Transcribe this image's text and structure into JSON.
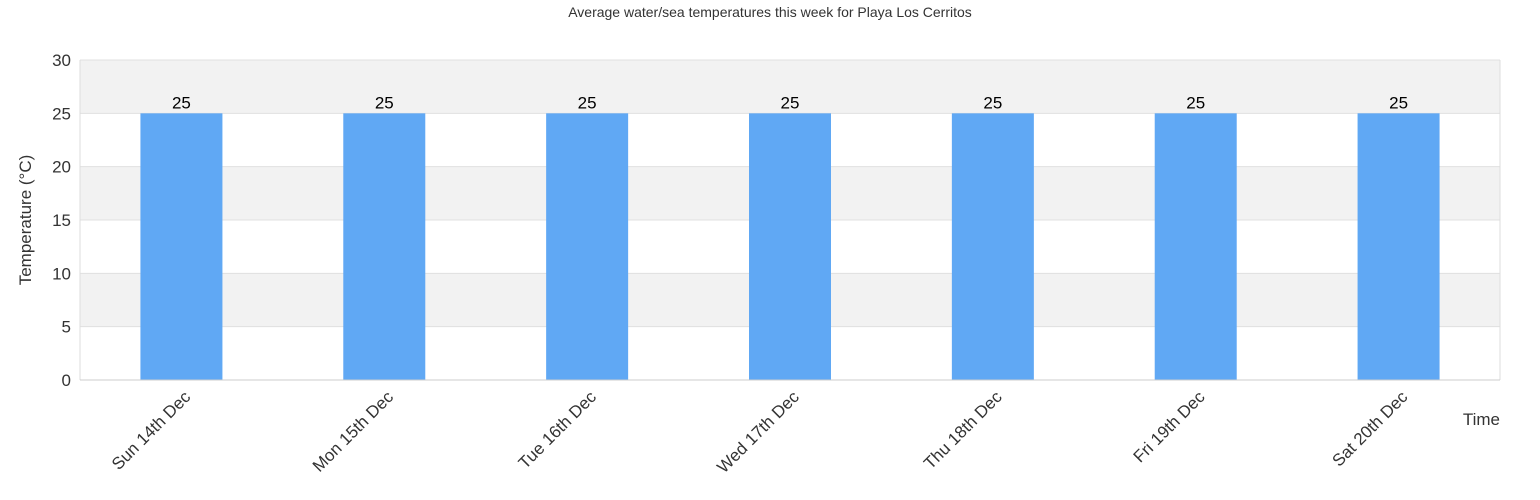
{
  "chart_data": {
    "type": "bar",
    "title": "Average water/sea temperatures this week for Playa Los Cerritos",
    "xlabel": "Time",
    "ylabel": "Temperature (°C)",
    "categories": [
      "Sun 14th Dec",
      "Mon 15th Dec",
      "Tue 16th Dec",
      "Wed 17th Dec",
      "Thu 18th Dec",
      "Fri 19th Dec",
      "Sat 20th Dec"
    ],
    "values": [
      25,
      25,
      25,
      25,
      25,
      25,
      25
    ],
    "ylim": [
      0,
      30
    ],
    "yticks": [
      0,
      5,
      10,
      15,
      20,
      25,
      30
    ],
    "grid": true,
    "data_labels": true,
    "colors": {
      "bar": "#60a8f4",
      "band": "#f2f2f2",
      "text": "#333333"
    }
  }
}
